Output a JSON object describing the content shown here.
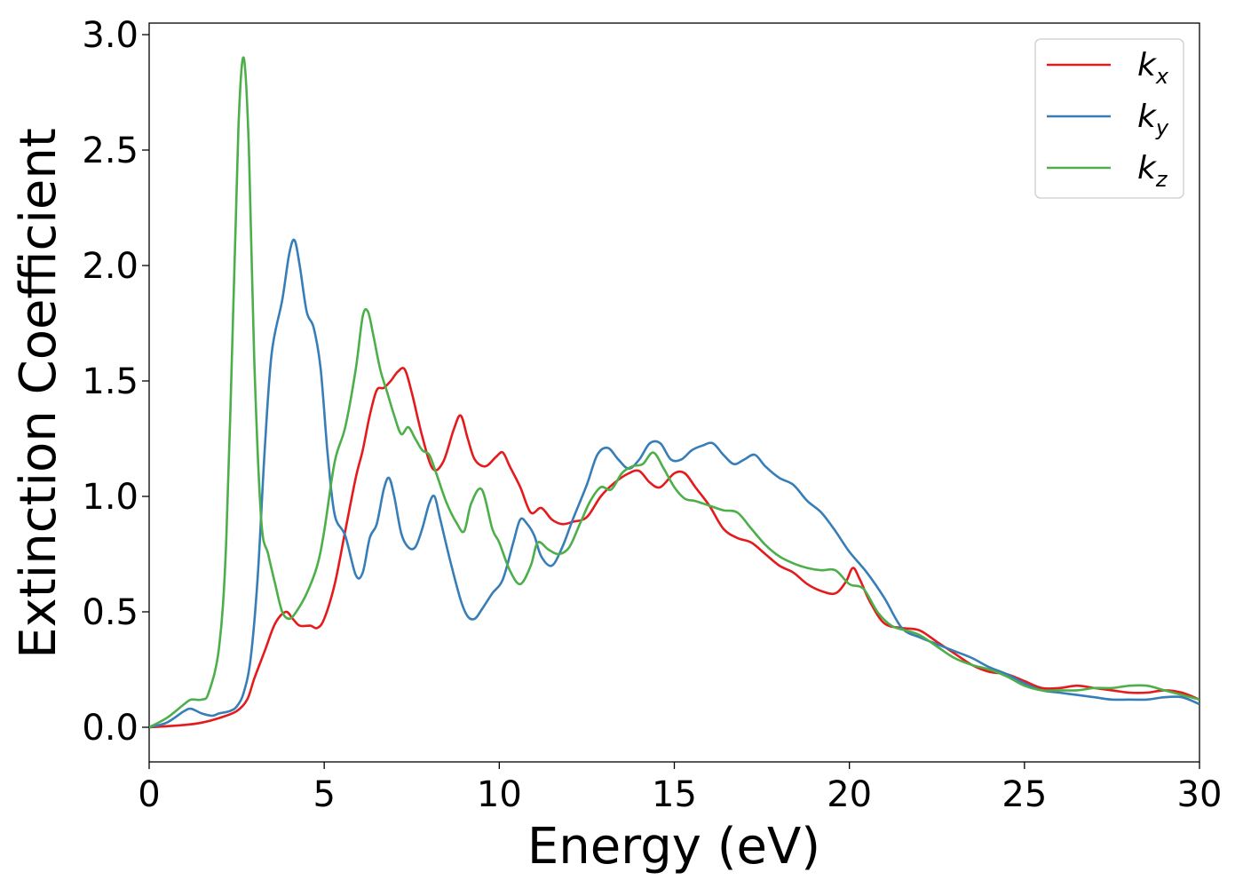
{
  "chart_data": {
    "type": "line",
    "title": "",
    "xlabel": "Energy (eV)",
    "ylabel": "Extinction Coefficient",
    "xlim": [
      0,
      30
    ],
    "ylim": [
      -0.15,
      3.05
    ],
    "x_ticks": [
      "0",
      "5",
      "10",
      "15",
      "20",
      "25",
      "30"
    ],
    "y_ticks": [
      "0.0",
      "0.5",
      "1.0",
      "1.5",
      "2.0",
      "2.5",
      "3.0"
    ],
    "x_tick_values": [
      0,
      5,
      10,
      15,
      20,
      25,
      30
    ],
    "y_tick_values": [
      0,
      0.5,
      1.0,
      1.5,
      2.0,
      2.5,
      3.0
    ],
    "grid": false,
    "legend_position": "top-right",
    "series": [
      {
        "name": "k",
        "subscript": "x",
        "color": "#e41a1c",
        "x": [
          0,
          1,
          1.5,
          2,
          2.5,
          2.8,
          3,
          3.3,
          3.6,
          3.9,
          4.1,
          4.3,
          4.6,
          4.8,
          5,
          5.3,
          5.6,
          5.9,
          6.1,
          6.3,
          6.5,
          6.7,
          6.9,
          7.1,
          7.3,
          7.5,
          7.8,
          8.1,
          8.4,
          8.7,
          8.9,
          9.1,
          9.3,
          9.6,
          9.9,
          10.1,
          10.3,
          10.6,
          10.9,
          11.2,
          11.5,
          11.8,
          12.1,
          12.5,
          12.9,
          13.3,
          13.7,
          14.0,
          14.3,
          14.6,
          15.0,
          15.3,
          15.6,
          16.0,
          16.4,
          16.8,
          17.2,
          17.6,
          18.0,
          18.4,
          18.8,
          19.2,
          19.6,
          19.9,
          20.1,
          20.3,
          20.6,
          21.0,
          21.5,
          22.0,
          22.5,
          23.0,
          23.5,
          24.0,
          24.5,
          25.0,
          25.5,
          26.0,
          26.5,
          27.0,
          27.5,
          28.0,
          28.5,
          29.0,
          29.5,
          30
        ],
        "values": [
          0,
          0.01,
          0.02,
          0.04,
          0.07,
          0.12,
          0.21,
          0.33,
          0.45,
          0.5,
          0.47,
          0.44,
          0.44,
          0.43,
          0.47,
          0.62,
          0.85,
          1.08,
          1.2,
          1.35,
          1.46,
          1.47,
          1.5,
          1.54,
          1.55,
          1.45,
          1.26,
          1.12,
          1.15,
          1.29,
          1.35,
          1.25,
          1.16,
          1.13,
          1.17,
          1.19,
          1.13,
          1.04,
          0.93,
          0.95,
          0.9,
          0.88,
          0.89,
          0.91,
          1.0,
          1.06,
          1.1,
          1.11,
          1.06,
          1.04,
          1.1,
          1.1,
          1.04,
          0.96,
          0.86,
          0.82,
          0.8,
          0.75,
          0.7,
          0.67,
          0.62,
          0.59,
          0.58,
          0.63,
          0.69,
          0.64,
          0.54,
          0.45,
          0.43,
          0.42,
          0.37,
          0.32,
          0.27,
          0.24,
          0.23,
          0.2,
          0.17,
          0.17,
          0.18,
          0.17,
          0.16,
          0.15,
          0.15,
          0.16,
          0.15,
          0.12
        ]
      },
      {
        "name": "k",
        "subscript": "y",
        "color": "#377eb8",
        "x": [
          0,
          0.5,
          1.0,
          1.2,
          1.5,
          1.8,
          2.0,
          2.3,
          2.5,
          2.7,
          2.9,
          3.1,
          3.3,
          3.5,
          3.8,
          4.0,
          4.15,
          4.3,
          4.5,
          4.7,
          4.9,
          5.1,
          5.3,
          5.6,
          5.9,
          6.1,
          6.3,
          6.5,
          6.7,
          6.85,
          7.0,
          7.2,
          7.4,
          7.6,
          7.8,
          8.0,
          8.15,
          8.3,
          8.6,
          8.9,
          9.1,
          9.3,
          9.5,
          9.8,
          10.1,
          10.4,
          10.6,
          10.8,
          11.0,
          11.2,
          11.5,
          11.8,
          12.1,
          12.5,
          12.8,
          13.1,
          13.4,
          13.7,
          14.0,
          14.3,
          14.6,
          14.9,
          15.2,
          15.5,
          15.8,
          16.1,
          16.4,
          16.7,
          17.0,
          17.3,
          17.6,
          18.0,
          18.4,
          18.8,
          19.2,
          19.6,
          20.0,
          20.5,
          21.0,
          21.5,
          22.0,
          22.5,
          23.0,
          23.5,
          24.0,
          24.5,
          25.0,
          25.5,
          26.0,
          26.5,
          27.0,
          27.5,
          28.0,
          28.5,
          29.0,
          29.5,
          30
        ],
        "values": [
          0,
          0.02,
          0.07,
          0.08,
          0.06,
          0.05,
          0.06,
          0.07,
          0.09,
          0.15,
          0.3,
          0.65,
          1.2,
          1.62,
          1.85,
          2.05,
          2.11,
          2.0,
          1.8,
          1.73,
          1.55,
          1.18,
          0.92,
          0.83,
          0.66,
          0.67,
          0.82,
          0.88,
          1.03,
          1.08,
          1.0,
          0.84,
          0.78,
          0.78,
          0.86,
          0.97,
          1.0,
          0.91,
          0.72,
          0.55,
          0.48,
          0.47,
          0.51,
          0.58,
          0.64,
          0.8,
          0.9,
          0.88,
          0.83,
          0.74,
          0.7,
          0.78,
          0.9,
          1.05,
          1.18,
          1.21,
          1.16,
          1.12,
          1.16,
          1.23,
          1.23,
          1.16,
          1.16,
          1.2,
          1.22,
          1.23,
          1.18,
          1.14,
          1.16,
          1.18,
          1.13,
          1.08,
          1.05,
          0.98,
          0.93,
          0.85,
          0.76,
          0.67,
          0.56,
          0.43,
          0.39,
          0.36,
          0.33,
          0.3,
          0.26,
          0.23,
          0.19,
          0.16,
          0.15,
          0.14,
          0.13,
          0.12,
          0.12,
          0.12,
          0.13,
          0.13,
          0.1
        ]
      },
      {
        "name": "k",
        "subscript": "z",
        "color": "#4daf4a",
        "x": [
          0,
          0.5,
          1.0,
          1.2,
          1.5,
          1.7,
          2.0,
          2.2,
          2.4,
          2.55,
          2.7,
          2.85,
          3.0,
          3.2,
          3.4,
          3.6,
          3.8,
          4.0,
          4.2,
          4.5,
          4.8,
          5.0,
          5.3,
          5.6,
          5.9,
          6.1,
          6.25,
          6.4,
          6.6,
          6.8,
          7.0,
          7.2,
          7.4,
          7.6,
          7.8,
          8.0,
          8.2,
          8.5,
          8.8,
          9.0,
          9.2,
          9.5,
          9.8,
          10.0,
          10.3,
          10.6,
          10.9,
          11.1,
          11.4,
          11.7,
          12.0,
          12.3,
          12.6,
          12.9,
          13.2,
          13.5,
          13.8,
          14.1,
          14.4,
          14.7,
          15.0,
          15.3,
          15.6,
          16.0,
          16.4,
          16.8,
          17.2,
          17.6,
          18.0,
          18.4,
          18.8,
          19.2,
          19.6,
          20.0,
          20.4,
          20.8,
          21.2,
          21.6,
          22.0,
          22.5,
          23.0,
          23.5,
          24.0,
          24.5,
          25.0,
          25.5,
          26.0,
          26.5,
          27.0,
          27.5,
          28.0,
          28.5,
          29.0,
          29.5,
          30
        ],
        "values": [
          0,
          0.04,
          0.1,
          0.12,
          0.12,
          0.15,
          0.35,
          0.8,
          1.8,
          2.6,
          2.9,
          2.5,
          1.6,
          0.9,
          0.75,
          0.62,
          0.5,
          0.47,
          0.5,
          0.58,
          0.7,
          0.85,
          1.15,
          1.3,
          1.55,
          1.78,
          1.8,
          1.7,
          1.55,
          1.45,
          1.35,
          1.27,
          1.3,
          1.25,
          1.2,
          1.18,
          1.1,
          0.97,
          0.88,
          0.85,
          0.97,
          1.03,
          0.86,
          0.8,
          0.68,
          0.62,
          0.7,
          0.8,
          0.77,
          0.75,
          0.78,
          0.88,
          0.98,
          1.04,
          1.03,
          1.1,
          1.13,
          1.14,
          1.19,
          1.12,
          1.04,
          0.99,
          0.98,
          0.96,
          0.94,
          0.93,
          0.86,
          0.79,
          0.74,
          0.71,
          0.69,
          0.68,
          0.68,
          0.62,
          0.6,
          0.5,
          0.44,
          0.42,
          0.4,
          0.35,
          0.3,
          0.27,
          0.25,
          0.22,
          0.18,
          0.16,
          0.16,
          0.16,
          0.17,
          0.17,
          0.18,
          0.18,
          0.16,
          0.14,
          0.12
        ]
      }
    ]
  }
}
